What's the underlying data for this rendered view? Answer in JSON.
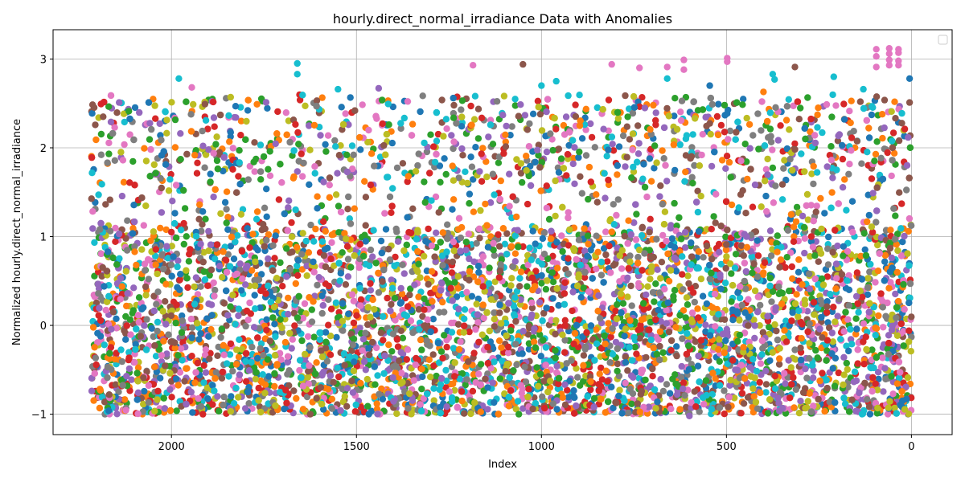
{
  "chart_data": {
    "type": "scatter",
    "title": "hourly.direct_normal_irradiance Data with Anomalies",
    "xlabel": "Index",
    "ylabel": "Normalized hourly.direct_normal_irradiance",
    "x_inverted": true,
    "xlim": [
      2320,
      -110
    ],
    "ylim": [
      -1.23,
      3.33
    ],
    "x_ticks": [
      2000,
      1500,
      1000,
      500,
      0
    ],
    "x_tick_labels": [
      "2000",
      "1500",
      "1000",
      "500",
      "0"
    ],
    "y_ticks": [
      -1,
      0,
      1,
      2,
      3
    ],
    "y_tick_labels": [
      "−1",
      "0",
      "1",
      "2",
      "3"
    ],
    "grid": true,
    "legend": {
      "placement": "top-right",
      "entries": []
    },
    "index_range": [
      0,
      2217
    ],
    "colors": [
      "#1f77b4",
      "#ff7f0e",
      "#2ca02c",
      "#d62728",
      "#9467bd",
      "#8c564b",
      "#e377c2",
      "#7f7f7f",
      "#bcbd22",
      "#17becf"
    ],
    "series_value_envelope": {
      "min": -1.0,
      "max": 3.1,
      "dense_band": [
        -1.0,
        2.6
      ]
    },
    "anomaly_points": [
      {
        "x": 1660,
        "y": 2.95,
        "color": "#17becf"
      },
      {
        "x": 1660,
        "y": 2.83,
        "color": "#17becf"
      },
      {
        "x": 1980,
        "y": 2.78,
        "color": "#17becf"
      },
      {
        "x": 1945,
        "y": 2.68,
        "color": "#e377c2"
      },
      {
        "x": 1185,
        "y": 2.93,
        "color": "#e377c2"
      },
      {
        "x": 1050,
        "y": 2.94,
        "color": "#8c564b"
      },
      {
        "x": 810,
        "y": 2.94,
        "color": "#e377c2"
      },
      {
        "x": 735,
        "y": 2.9,
        "color": "#e377c2"
      },
      {
        "x": 660,
        "y": 2.91,
        "color": "#e377c2"
      },
      {
        "x": 660,
        "y": 2.78,
        "color": "#17becf"
      },
      {
        "x": 615,
        "y": 2.99,
        "color": "#e377c2"
      },
      {
        "x": 615,
        "y": 2.88,
        "color": "#e377c2"
      },
      {
        "x": 498,
        "y": 3.01,
        "color": "#e377c2"
      },
      {
        "x": 498,
        "y": 2.97,
        "color": "#e377c2"
      },
      {
        "x": 375,
        "y": 2.83,
        "color": "#17becf"
      },
      {
        "x": 370,
        "y": 2.77,
        "color": "#17becf"
      },
      {
        "x": 315,
        "y": 2.91,
        "color": "#8c564b"
      },
      {
        "x": 210,
        "y": 2.8,
        "color": "#17becf"
      },
      {
        "x": 95,
        "y": 3.11,
        "color": "#e377c2"
      },
      {
        "x": 95,
        "y": 3.03,
        "color": "#e377c2"
      },
      {
        "x": 95,
        "y": 2.91,
        "color": "#e377c2"
      },
      {
        "x": 60,
        "y": 3.12,
        "color": "#e377c2"
      },
      {
        "x": 60,
        "y": 3.06,
        "color": "#e377c2"
      },
      {
        "x": 60,
        "y": 2.99,
        "color": "#e377c2"
      },
      {
        "x": 60,
        "y": 2.93,
        "color": "#e377c2"
      },
      {
        "x": 35,
        "y": 3.11,
        "color": "#e377c2"
      },
      {
        "x": 35,
        "y": 3.07,
        "color": "#e377c2"
      },
      {
        "x": 35,
        "y": 2.98,
        "color": "#e377c2"
      },
      {
        "x": 35,
        "y": 2.93,
        "color": "#e377c2"
      },
      {
        "x": 5,
        "y": 2.78,
        "color": "#1f77b4"
      },
      {
        "x": 5,
        "y": 2.51,
        "color": "#8c564b"
      },
      {
        "x": 1840,
        "y": 2.57,
        "color": "#bcbd22"
      },
      {
        "x": 1550,
        "y": 2.66,
        "color": "#17becf"
      },
      {
        "x": 1440,
        "y": 2.67,
        "color": "#9467bd"
      },
      {
        "x": 1000,
        "y": 2.7,
        "color": "#17becf"
      },
      {
        "x": 960,
        "y": 2.75,
        "color": "#17becf"
      },
      {
        "x": 545,
        "y": 2.7,
        "color": "#1f77b4"
      },
      {
        "x": 400,
        "y": 2.63,
        "color": "#ff7f0e"
      },
      {
        "x": 130,
        "y": 2.66,
        "color": "#17becf"
      },
      {
        "x": 600,
        "y": -1.02,
        "color": "#9467bd"
      },
      {
        "x": 1915,
        "y": -1.0,
        "color": "#d62728"
      },
      {
        "x": 1625,
        "y": -1.0,
        "color": "#8c564b"
      }
    ]
  }
}
